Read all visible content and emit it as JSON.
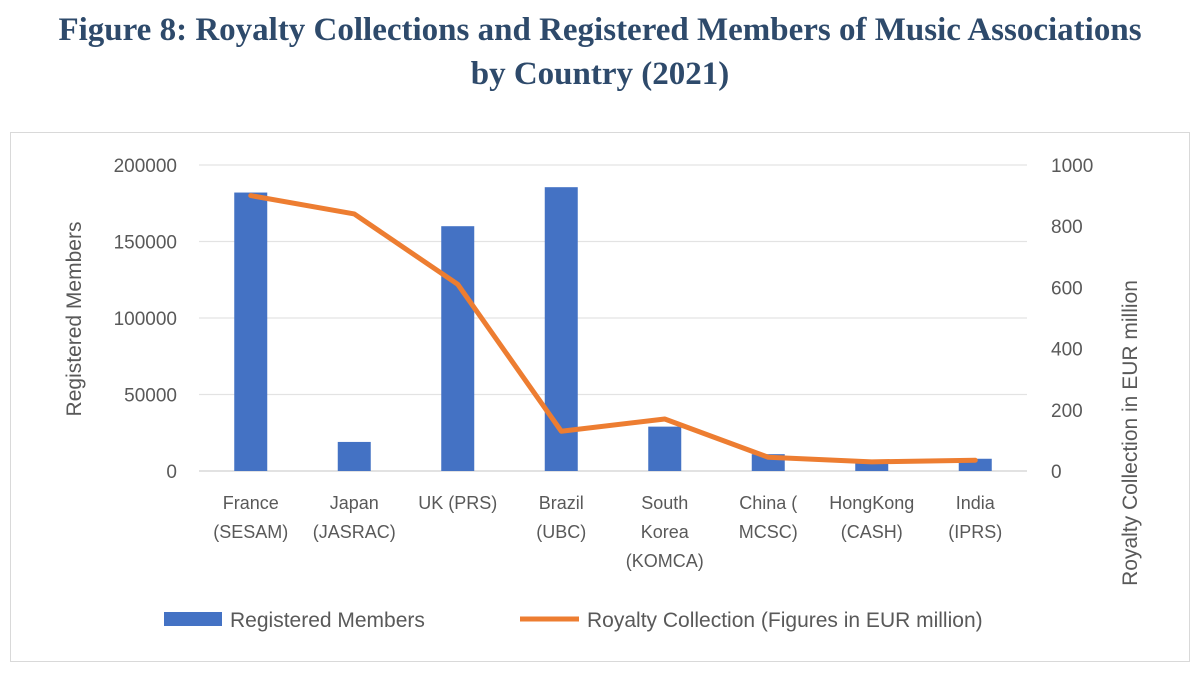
{
  "figure": {
    "title_line1": "Figure 8: Royalty Collections and Registered Members of Music Associations",
    "title_line2": "by Country (2021)"
  },
  "chart_data": {
    "type": "bar",
    "categories": [
      [
        "France",
        "(SESAM)"
      ],
      [
        "Japan",
        "(JASRAC)"
      ],
      [
        "UK (PRS)"
      ],
      [
        "Brazil",
        "(UBC)"
      ],
      [
        "South",
        "Korea",
        "(KOMCA)"
      ],
      [
        "China (",
        "MCSC)"
      ],
      [
        "HongKong",
        "(CASH)"
      ],
      [
        "India",
        "(IPRS)"
      ]
    ],
    "ylabel": "Registered Members",
    "y2label": "Royalty Collection in EUR million",
    "ylim": [
      0,
      200000
    ],
    "y2lim": [
      0,
      1000
    ],
    "yticks": [
      "0",
      "50000",
      "100000",
      "150000",
      "200000"
    ],
    "y2ticks": [
      "0",
      "200",
      "400",
      "600",
      "800",
      "1000"
    ],
    "grid": true,
    "legend_position": "bottom",
    "series": [
      {
        "name": "Registered Members",
        "type": "bar",
        "axis": "left",
        "color": "#4472c4",
        "values": [
          182000,
          19000,
          160000,
          185500,
          29000,
          11000,
          5000,
          8000
        ]
      },
      {
        "name": "Royalty Collection (Figures in EUR million)",
        "type": "line",
        "axis": "right",
        "color": "#ed7d31",
        "values": [
          900,
          840,
          610,
          130,
          170,
          45,
          30,
          35
        ]
      }
    ]
  }
}
